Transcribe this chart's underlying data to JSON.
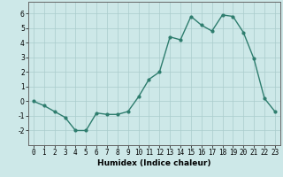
{
  "x": [
    0,
    1,
    2,
    3,
    4,
    5,
    6,
    7,
    8,
    9,
    10,
    11,
    12,
    13,
    14,
    15,
    16,
    17,
    18,
    19,
    20,
    21,
    22,
    23
  ],
  "y": [
    0.0,
    -0.3,
    -0.7,
    -1.1,
    -2.0,
    -2.0,
    -0.8,
    -0.9,
    -0.9,
    -0.7,
    0.3,
    1.5,
    2.0,
    4.4,
    4.2,
    5.8,
    5.2,
    4.8,
    5.9,
    5.8,
    4.7,
    2.9,
    0.2,
    -0.7
  ],
  "line_color": "#2e7d6e",
  "marker": "o",
  "marker_size": 2.0,
  "linewidth": 1.0,
  "xlabel": "Humidex (Indice chaleur)",
  "xlim": [
    -0.5,
    23.5
  ],
  "ylim": [
    -3,
    6.8
  ],
  "yticks": [
    -2,
    -1,
    0,
    1,
    2,
    3,
    4,
    5,
    6
  ],
  "xticks": [
    0,
    1,
    2,
    3,
    4,
    5,
    6,
    7,
    8,
    9,
    10,
    11,
    12,
    13,
    14,
    15,
    16,
    17,
    18,
    19,
    20,
    21,
    22,
    23
  ],
  "bg_color": "#cde8e8",
  "grid_color": "#aacccc",
  "tick_fontsize": 5.5,
  "label_fontsize": 6.5
}
